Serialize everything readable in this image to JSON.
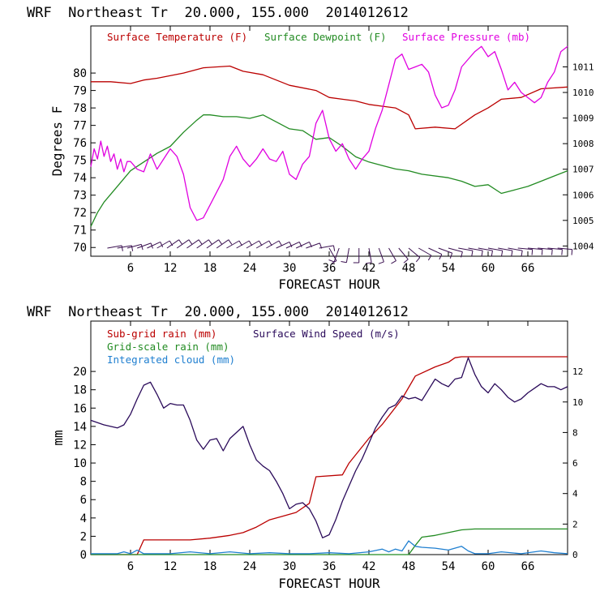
{
  "colors": {
    "temperature": "#bb0000",
    "dewpoint": "#228b22",
    "pressure": "#e000e0",
    "subgrid": "#bb0000",
    "gridscale": "#228b22",
    "cloud": "#1f7fd0",
    "wind": "#2a0a5a",
    "barb": "#3a1050"
  },
  "chart_data": [
    {
      "type": "line",
      "title": "WRF  Northeast Tr  20.000, 155.000  2014012612",
      "xlabel": "FORECAST HOUR",
      "ylabel": "Degrees F",
      "y2label": "",
      "xlim": [
        0,
        72
      ],
      "ylim": [
        69.5,
        82.7
      ],
      "y2lim": [
        1003.6,
        1012.6
      ],
      "xticks": [
        6,
        12,
        18,
        24,
        30,
        36,
        42,
        48,
        54,
        60,
        66
      ],
      "xtick_labels": [
        "6",
        "12",
        "18",
        "24",
        "30",
        "36",
        "42",
        "48",
        "54",
        "60",
        "66"
      ],
      "yticks": [
        70,
        71,
        72,
        73,
        74,
        75,
        76,
        77,
        78,
        79,
        80
      ],
      "ytick_labels": [
        "70",
        "71",
        "72",
        "73",
        "74",
        "75",
        "76",
        "77",
        "78",
        "79",
        "80"
      ],
      "y2ticks": [
        1004,
        1005,
        1006,
        1007,
        1008,
        1009,
        1010,
        1011
      ],
      "y2tick_labels": [
        "1004",
        "1005",
        "1006",
        "1007",
        "1008",
        "1009",
        "1010",
        "1011"
      ],
      "legend": [
        {
          "label": "Surface Temperature (F)",
          "color_key": "temperature"
        },
        {
          "label": "Surface Dewpoint (F)",
          "color_key": "dewpoint"
        },
        {
          "label": "Surface Pressure (mb)",
          "color_key": "pressure"
        }
      ],
      "series": [
        {
          "name": "Surface Temperature (F)",
          "axis": "left",
          "color_key": "temperature",
          "x": [
            0,
            3,
            6,
            8,
            10,
            14,
            17,
            21,
            23,
            26,
            30,
            34,
            36,
            38,
            40,
            42,
            44,
            46,
            48,
            49,
            52,
            55,
            58,
            60,
            62,
            65,
            68,
            72
          ],
          "y": [
            79.5,
            79.5,
            79.4,
            79.6,
            79.7,
            80.0,
            80.3,
            80.4,
            80.1,
            79.9,
            79.3,
            79.0,
            78.6,
            78.5,
            78.4,
            78.2,
            78.1,
            78.0,
            77.6,
            76.8,
            76.9,
            76.8,
            77.6,
            78.0,
            78.5,
            78.6,
            79.1,
            79.2
          ]
        },
        {
          "name": "Surface Dewpoint (F)",
          "axis": "left",
          "color_key": "dewpoint",
          "x": [
            0,
            1,
            2,
            4,
            6,
            8,
            10,
            12,
            14,
            16,
            17,
            18,
            20,
            22,
            24,
            26,
            28,
            30,
            32,
            34,
            36,
            38,
            40,
            42,
            44,
            46,
            48,
            50,
            54,
            56,
            58,
            60,
            62,
            64,
            66,
            68,
            70,
            72
          ],
          "y": [
            71.2,
            72.0,
            72.6,
            73.5,
            74.4,
            74.9,
            75.4,
            75.8,
            76.6,
            77.3,
            77.6,
            77.6,
            77.5,
            77.5,
            77.4,
            77.6,
            77.2,
            76.8,
            76.7,
            76.2,
            76.3,
            75.8,
            75.2,
            74.9,
            74.7,
            74.5,
            74.4,
            74.2,
            74.0,
            73.8,
            73.5,
            73.6,
            73.1,
            73.3,
            73.5,
            73.8,
            74.1,
            74.4
          ]
        },
        {
          "name": "Surface Pressure (mb)",
          "axis": "right",
          "color_key": "pressure",
          "x": [
            0,
            0.5,
            1,
            1.5,
            2,
            2.5,
            3,
            3.5,
            4,
            4.5,
            5,
            5.5,
            6,
            7,
            8,
            9,
            10,
            11,
            12,
            13,
            14,
            15,
            16,
            17,
            18,
            19,
            20,
            21,
            22,
            23,
            24,
            25,
            26,
            27,
            28,
            29,
            30,
            31,
            32,
            33,
            34,
            35,
            36,
            37,
            38,
            39,
            40,
            41,
            42,
            43,
            44,
            45,
            46,
            47,
            48,
            49,
            50,
            51,
            52,
            53,
            54,
            55,
            56,
            57,
            58,
            59,
            60,
            61,
            62,
            63,
            64,
            65,
            66,
            67,
            68,
            69,
            70,
            71,
            72
          ],
          "y": [
            1007.1,
            1007.8,
            1007.4,
            1008.1,
            1007.5,
            1007.9,
            1007.3,
            1007.6,
            1007.0,
            1007.4,
            1006.9,
            1007.3,
            1007.3,
            1007.0,
            1006.9,
            1007.6,
            1007.0,
            1007.4,
            1007.8,
            1007.5,
            1006.8,
            1005.5,
            1005.0,
            1005.1,
            1005.6,
            1006.1,
            1006.6,
            1007.5,
            1007.9,
            1007.4,
            1007.1,
            1007.4,
            1007.8,
            1007.4,
            1007.3,
            1007.7,
            1006.8,
            1006.6,
            1007.2,
            1007.5,
            1008.8,
            1009.3,
            1008.2,
            1007.7,
            1008.0,
            1007.4,
            1007.0,
            1007.4,
            1007.7,
            1008.6,
            1009.3,
            1010.3,
            1011.3,
            1011.5,
            1010.9,
            1011.0,
            1011.1,
            1010.8,
            1009.9,
            1009.4,
            1009.5,
            1010.1,
            1011.0,
            1011.3,
            1011.6,
            1011.8,
            1011.4,
            1011.6,
            1010.9,
            1010.1,
            1010.4,
            1010.0,
            1009.8,
            1009.6,
            1009.8,
            1010.4,
            1010.8,
            1011.6,
            1011.8
          ]
        }
      ],
      "wind_barbs": {
        "x": [
          2.5,
          4,
          5.5,
          7,
          8.5,
          10,
          11.5,
          13,
          14.5,
          16,
          17.5,
          19,
          20.5,
          22,
          23.5,
          25,
          26.5,
          28,
          29.5,
          31,
          32.5,
          34.5,
          36,
          37.5,
          39,
          40.5,
          42,
          43.5,
          45,
          46.5,
          48,
          49.5,
          51,
          52.5,
          54,
          55.5,
          57,
          58.5,
          60,
          61.5,
          63,
          64.5,
          66,
          67.5,
          69,
          70.5
        ],
        "direction_deg": [
          80,
          80,
          75,
          70,
          65,
          60,
          55,
          55,
          55,
          55,
          55,
          55,
          60,
          60,
          60,
          60,
          60,
          65,
          65,
          65,
          70,
          80,
          150,
          200,
          190,
          180,
          170,
          160,
          150,
          140,
          130,
          120,
          115,
          110,
          105,
          100,
          100,
          100,
          100,
          100,
          100,
          95,
          95,
          95,
          95,
          95
        ]
      }
    },
    {
      "type": "line",
      "title": "WRF  Northeast Tr  20.000, 155.000  2014012612",
      "xlabel": "FORECAST HOUR",
      "ylabel": "mm",
      "y2label": "",
      "xlim": [
        0,
        72
      ],
      "ylim": [
        0,
        25.5
      ],
      "y2lim": [
        0,
        15.3
      ],
      "xticks": [
        6,
        12,
        18,
        24,
        30,
        36,
        42,
        48,
        54,
        60,
        66
      ],
      "xtick_labels": [
        "6",
        "12",
        "18",
        "24",
        "30",
        "36",
        "42",
        "48",
        "54",
        "60",
        "66"
      ],
      "yticks": [
        0,
        2,
        4,
        6,
        8,
        10,
        12,
        14,
        16,
        18,
        20
      ],
      "ytick_labels": [
        "0",
        "2",
        "4",
        "6",
        "8",
        "10",
        "12",
        "14",
        "16",
        "18",
        "20"
      ],
      "y2ticks": [
        0,
        2,
        4,
        6,
        8,
        10,
        12
      ],
      "y2tick_labels": [
        "0",
        "2",
        "4",
        "6",
        "8",
        "10",
        "12"
      ],
      "legend": [
        {
          "label": "Sub-grid rain (mm)",
          "color_key": "subgrid"
        },
        {
          "label": "Surface Wind Speed (m/s)",
          "color_key": "wind"
        },
        {
          "label": "Grid-scale rain (mm)",
          "color_key": "gridscale"
        },
        {
          "label": "Integrated cloud (mm)",
          "color_key": "cloud"
        }
      ],
      "series": [
        {
          "name": "Sub-grid rain (mm)",
          "axis": "left",
          "color_key": "subgrid",
          "x": [
            0,
            7,
            8,
            15,
            18,
            21,
            23,
            25,
            27,
            29,
            31,
            33,
            34,
            38,
            39,
            42,
            44,
            47,
            49,
            52,
            54,
            55,
            56,
            72
          ],
          "y": [
            0,
            0,
            1.6,
            1.6,
            1.8,
            2.1,
            2.4,
            3.0,
            3.8,
            4.2,
            4.6,
            5.6,
            8.5,
            8.7,
            10.0,
            12.7,
            14.2,
            17.0,
            19.5,
            20.5,
            21.0,
            21.5,
            21.6,
            21.6
          ]
        },
        {
          "name": "Grid-scale rain (mm)",
          "axis": "left",
          "color_key": "gridscale",
          "x": [
            0,
            48,
            49,
            50,
            52,
            54,
            56,
            58,
            72
          ],
          "y": [
            0,
            0,
            1.0,
            1.9,
            2.1,
            2.4,
            2.7,
            2.8,
            2.8
          ]
        },
        {
          "name": "Integrated cloud (mm)",
          "axis": "left",
          "color_key": "cloud",
          "x": [
            0,
            4,
            5,
            6,
            7,
            8,
            10,
            12,
            15,
            18,
            21,
            24,
            27,
            30,
            33,
            36,
            39,
            42,
            44,
            45,
            46,
            47,
            48,
            49,
            50,
            52,
            54,
            56,
            57,
            58,
            60,
            62,
            65,
            68,
            70,
            72
          ],
          "y": [
            0.1,
            0.1,
            0.3,
            0.1,
            0.5,
            0.1,
            0.1,
            0.1,
            0.3,
            0.1,
            0.3,
            0.1,
            0.2,
            0.1,
            0.1,
            0.2,
            0.1,
            0.3,
            0.6,
            0.3,
            0.6,
            0.4,
            1.5,
            0.9,
            0.8,
            0.7,
            0.5,
            0.9,
            0.4,
            0.1,
            0.1,
            0.3,
            0.1,
            0.4,
            0.2,
            0.1
          ]
        },
        {
          "name": "Surface Wind Speed (m/s)",
          "axis": "right",
          "color_key": "wind",
          "x": [
            0,
            2,
            4,
            5,
            6,
            7,
            8,
            9,
            10,
            11,
            12,
            13,
            14,
            15,
            16,
            17,
            18,
            19,
            20,
            21,
            22,
            23,
            24,
            25,
            26,
            27,
            28,
            29,
            30,
            31,
            32,
            33,
            34,
            35,
            36,
            37,
            38,
            39,
            40,
            41,
            42,
            43,
            44,
            45,
            46,
            47,
            48,
            49,
            50,
            51,
            52,
            53,
            54,
            55,
            56,
            57,
            58,
            59,
            60,
            61,
            62,
            63,
            64,
            65,
            66,
            67,
            68,
            69,
            70,
            71,
            72
          ],
          "y": [
            8.8,
            8.5,
            8.3,
            8.5,
            9.2,
            10.2,
            11.1,
            11.3,
            10.5,
            9.6,
            9.9,
            9.8,
            9.8,
            8.8,
            7.5,
            6.9,
            7.5,
            7.6,
            6.8,
            7.6,
            8.0,
            8.4,
            7.2,
            6.2,
            5.8,
            5.5,
            4.8,
            4.0,
            3.0,
            3.3,
            3.4,
            3.0,
            2.2,
            1.1,
            1.3,
            2.3,
            3.5,
            4.5,
            5.5,
            6.3,
            7.3,
            8.3,
            9.0,
            9.6,
            9.8,
            10.4,
            10.2,
            10.3,
            10.1,
            10.8,
            11.5,
            11.2,
            11.0,
            11.5,
            11.6,
            12.9,
            11.8,
            11.0,
            10.6,
            11.2,
            10.8,
            10.3,
            10.0,
            10.2,
            10.6,
            10.9,
            11.2,
            11.0,
            11.0,
            10.8,
            11.0
          ]
        }
      ]
    }
  ]
}
